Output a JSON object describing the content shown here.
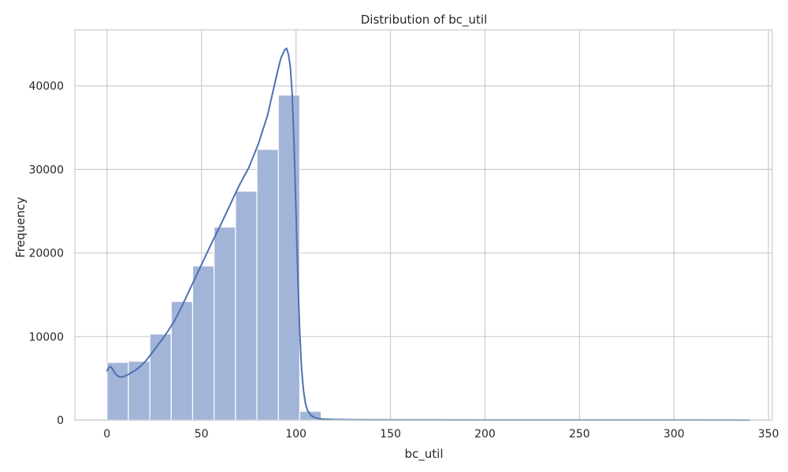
{
  "chart_data": {
    "type": "bar",
    "title": "Distribution of bc_util",
    "xlabel": "bc_util",
    "ylabel": "Frequency",
    "xlim": [
      -17,
      352
    ],
    "ylim": [
      0,
      46700
    ],
    "xticks": [
      0,
      50,
      100,
      150,
      200,
      250,
      300,
      350
    ],
    "yticks": [
      0,
      10000,
      20000,
      30000,
      40000
    ],
    "grid": true,
    "bins": [
      {
        "x0": 0,
        "x1": 11.33,
        "count": 6900
      },
      {
        "x0": 11.33,
        "x1": 22.67,
        "count": 7050
      },
      {
        "x0": 22.67,
        "x1": 34.0,
        "count": 10300
      },
      {
        "x0": 34.0,
        "x1": 45.33,
        "count": 14200
      },
      {
        "x0": 45.33,
        "x1": 56.67,
        "count": 18450
      },
      {
        "x0": 56.67,
        "x1": 68.0,
        "count": 23100
      },
      {
        "x0": 68.0,
        "x1": 79.33,
        "count": 27400
      },
      {
        "x0": 79.33,
        "x1": 90.67,
        "count": 32400
      },
      {
        "x0": 90.67,
        "x1": 102.0,
        "count": 38900
      },
      {
        "x0": 102.0,
        "x1": 113.33,
        "count": 1050
      },
      {
        "x0": 113.33,
        "x1": 124.67,
        "count": 120
      },
      {
        "x0": 124.67,
        "x1": 136.0,
        "count": 60
      },
      {
        "x0": 136.0,
        "x1": 147.33,
        "count": 30
      },
      {
        "x0": 147.33,
        "x1": 158.67,
        "count": 20
      },
      {
        "x0": 158.67,
        "x1": 170.0,
        "count": 15
      },
      {
        "x0": 170.0,
        "x1": 181.33,
        "count": 10
      },
      {
        "x0": 181.33,
        "x1": 192.67,
        "count": 8
      },
      {
        "x0": 192.67,
        "x1": 204.0,
        "count": 6
      },
      {
        "x0": 204.0,
        "x1": 215.33,
        "count": 5
      },
      {
        "x0": 215.33,
        "x1": 226.67,
        "count": 4
      },
      {
        "x0": 226.67,
        "x1": 238.0,
        "count": 4
      },
      {
        "x0": 238.0,
        "x1": 249.33,
        "count": 3
      },
      {
        "x0": 249.33,
        "x1": 260.67,
        "count": 3
      },
      {
        "x0": 260.67,
        "x1": 272.0,
        "count": 2
      },
      {
        "x0": 272.0,
        "x1": 283.33,
        "count": 2
      },
      {
        "x0": 283.33,
        "x1": 294.67,
        "count": 2
      },
      {
        "x0": 294.67,
        "x1": 306.0,
        "count": 1
      },
      {
        "x0": 306.0,
        "x1": 317.33,
        "count": 1
      },
      {
        "x0": 317.33,
        "x1": 328.67,
        "count": 1
      },
      {
        "x0": 328.67,
        "x1": 340.0,
        "count": 1
      }
    ],
    "kde": {
      "x": [
        0,
        1,
        2,
        3,
        4,
        5,
        6,
        7,
        8,
        10,
        12,
        15,
        18,
        21,
        24,
        27,
        30,
        33,
        36,
        40,
        45,
        50,
        55,
        60,
        65,
        70,
        75,
        80,
        85,
        88,
        90,
        92,
        94,
        95,
        96,
        97,
        98,
        99,
        100,
        101,
        102,
        103,
        104,
        105,
        106,
        108,
        110,
        112,
        115,
        120,
        130,
        150,
        200,
        300,
        340
      ],
      "y": [
        5900,
        6300,
        6400,
        6100,
        5700,
        5400,
        5250,
        5150,
        5150,
        5300,
        5550,
        5950,
        6500,
        7200,
        8100,
        9000,
        9900,
        10900,
        12000,
        13800,
        16200,
        18600,
        21000,
        23300,
        25700,
        28100,
        30200,
        33000,
        36500,
        39500,
        41500,
        43300,
        44300,
        44500,
        43800,
        42300,
        39000,
        33000,
        25000,
        17000,
        10500,
        6000,
        3500,
        2000,
        1200,
        550,
        300,
        180,
        110,
        70,
        40,
        25,
        15,
        8,
        5
      ]
    },
    "colors": {
      "bar_fill": "#a2b4d8",
      "bar_edge": "#ffffff",
      "kde_line": "#4c72b0",
      "grid": "#cccccc",
      "axes_frame": "#cccccc",
      "text": "#262626"
    }
  }
}
